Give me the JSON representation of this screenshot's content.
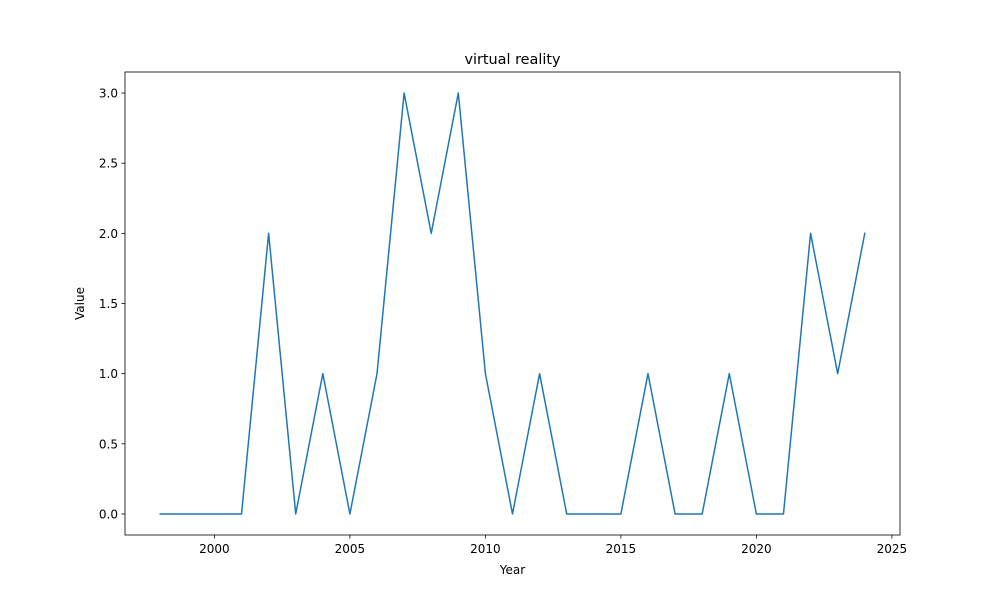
{
  "chart_data": {
    "type": "line",
    "title": "virtual reality",
    "xlabel": "Year",
    "ylabel": "Value",
    "xlim": [
      1996.7,
      2025.3
    ],
    "ylim": [
      -0.15,
      3.15
    ],
    "xticks": [
      2000,
      2005,
      2010,
      2015,
      2020,
      2025
    ],
    "yticks": [
      0.0,
      0.5,
      1.0,
      1.5,
      2.0,
      2.5,
      3.0
    ],
    "ytick_labels": [
      "0.0",
      "0.5",
      "1.0",
      "1.5",
      "2.0",
      "2.5",
      "3.0"
    ],
    "grid": false,
    "series": [
      {
        "color": "#1f77b4",
        "x": [
          1998,
          1999,
          2000,
          2001,
          2002,
          2003,
          2004,
          2005,
          2006,
          2007,
          2008,
          2009,
          2010,
          2011,
          2012,
          2013,
          2014,
          2015,
          2016,
          2017,
          2018,
          2019,
          2020,
          2021,
          2022,
          2023,
          2024
        ],
        "values": [
          0,
          0,
          0,
          0,
          2,
          0,
          1,
          0,
          1,
          3,
          2,
          3,
          1,
          0,
          1,
          0,
          0,
          0,
          1,
          0,
          0,
          1,
          0,
          0,
          2,
          1,
          2
        ]
      }
    ]
  }
}
